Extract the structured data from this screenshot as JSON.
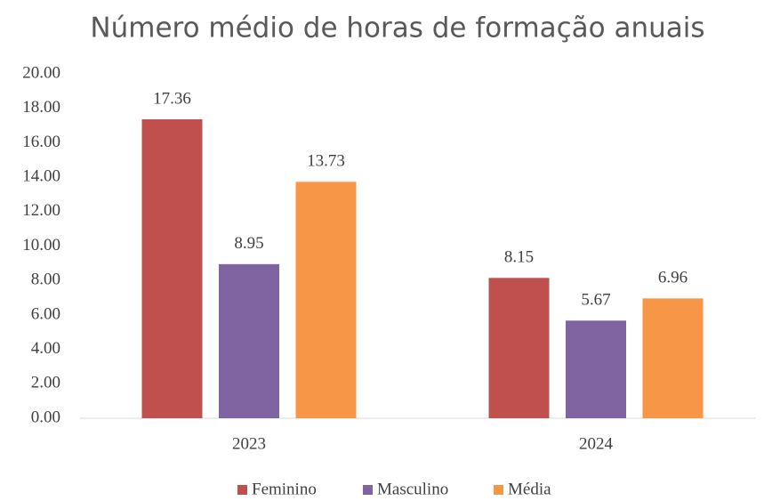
{
  "chart_data": {
    "type": "bar",
    "title": "Número médio de horas de formação anuais",
    "categories": [
      "2023",
      "2024"
    ],
    "series": [
      {
        "name": "Feminino",
        "color": "#c0504d",
        "values": [
          17.36,
          8.15
        ]
      },
      {
        "name": "Masculino",
        "color": "#8064a2",
        "values": [
          8.95,
          5.67
        ]
      },
      {
        "name": "Média",
        "color": "#f79646",
        "values": [
          13.73,
          6.96
        ]
      }
    ],
    "ylim": [
      0,
      20
    ],
    "yticks": [
      {
        "value": 0,
        "label": "0.00"
      },
      {
        "value": 2,
        "label": "2.00"
      },
      {
        "value": 4,
        "label": "4.00"
      },
      {
        "value": 6,
        "label": "6.00"
      },
      {
        "value": 8,
        "label": "8.00"
      },
      {
        "value": 10,
        "label": "10.00"
      },
      {
        "value": 12,
        "label": "12.00"
      },
      {
        "value": 14,
        "label": "14.00"
      },
      {
        "value": 16,
        "label": "16.00"
      },
      {
        "value": 18,
        "label": "18.00"
      },
      {
        "value": 20,
        "label": "20.00"
      }
    ],
    "grid": false,
    "legend": "bottom"
  }
}
